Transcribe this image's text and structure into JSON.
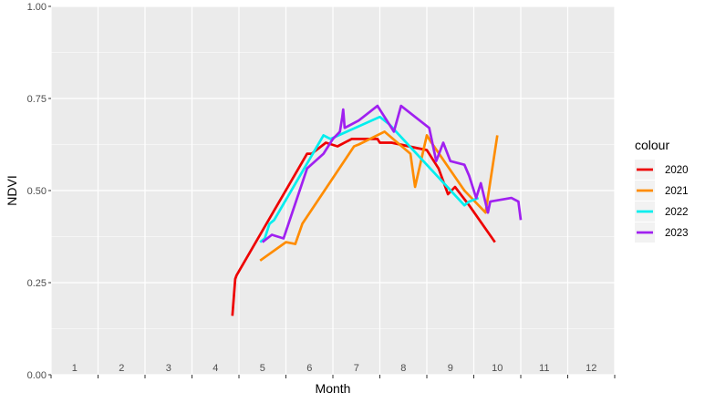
{
  "chart_data": {
    "type": "line",
    "title": "",
    "xlabel": "Month",
    "ylabel": "NDVI",
    "xlim": [
      0.5,
      12.5
    ],
    "ylim": [
      0,
      1
    ],
    "x_ticks": [
      1,
      2,
      3,
      4,
      5,
      6,
      7,
      8,
      9,
      10,
      11,
      12
    ],
    "x_tick_labels": [
      "1",
      "2",
      "3",
      "4",
      "5",
      "6",
      "7",
      "8",
      "9",
      "10",
      "11",
      "12"
    ],
    "y_ticks": [
      0,
      0.25,
      0.5,
      0.75,
      1
    ],
    "y_tick_labels": [
      "0.00",
      "0.25",
      "0.50",
      "0.75",
      "1.00"
    ],
    "grid": true,
    "legend": {
      "title": "colour",
      "position": "right"
    },
    "series": [
      {
        "name": "2020",
        "color": "#ee0000",
        "points": [
          [
            4.36,
            0.16
          ],
          [
            4.42,
            0.26
          ],
          [
            4.45,
            0.27
          ],
          [
            5.95,
            0.6
          ],
          [
            6.05,
            0.6
          ],
          [
            6.35,
            0.63
          ],
          [
            6.6,
            0.62
          ],
          [
            6.9,
            0.64
          ],
          [
            7.45,
            0.64
          ],
          [
            7.5,
            0.63
          ],
          [
            7.75,
            0.63
          ],
          [
            8.3,
            0.615
          ],
          [
            8.5,
            0.61
          ],
          [
            8.75,
            0.56
          ],
          [
            8.95,
            0.49
          ],
          [
            9.1,
            0.51
          ],
          [
            9.4,
            0.46
          ],
          [
            9.95,
            0.36
          ]
        ]
      },
      {
        "name": "2021",
        "color": "#ff8c00",
        "points": [
          [
            4.95,
            0.31
          ],
          [
            5.5,
            0.36
          ],
          [
            5.7,
            0.355
          ],
          [
            5.85,
            0.41
          ],
          [
            6.95,
            0.62
          ],
          [
            7.05,
            0.625
          ],
          [
            7.6,
            0.66
          ],
          [
            8.15,
            0.6
          ],
          [
            8.25,
            0.51
          ],
          [
            8.5,
            0.65
          ],
          [
            8.6,
            0.63
          ],
          [
            9.3,
            0.5
          ],
          [
            9.75,
            0.44
          ],
          [
            10.0,
            0.65
          ]
        ]
      },
      {
        "name": "2022",
        "color": "#00eeee",
        "points": [
          [
            4.95,
            0.36
          ],
          [
            5.05,
            0.37
          ],
          [
            5.15,
            0.41
          ],
          [
            5.25,
            0.42
          ],
          [
            6.3,
            0.65
          ],
          [
            6.45,
            0.64
          ],
          [
            7.5,
            0.7
          ],
          [
            7.7,
            0.68
          ],
          [
            9.3,
            0.46
          ],
          [
            9.4,
            0.47
          ],
          [
            9.6,
            0.48
          ]
        ]
      },
      {
        "name": "2023",
        "color": "#a020f0",
        "points": [
          [
            5.0,
            0.36
          ],
          [
            5.2,
            0.38
          ],
          [
            5.45,
            0.37
          ],
          [
            5.95,
            0.56
          ],
          [
            6.3,
            0.6
          ],
          [
            6.5,
            0.64
          ],
          [
            6.65,
            0.66
          ],
          [
            6.7,
            0.7
          ],
          [
            6.72,
            0.72
          ],
          [
            6.75,
            0.67
          ],
          [
            7.05,
            0.69
          ],
          [
            7.45,
            0.73
          ],
          [
            7.8,
            0.66
          ],
          [
            7.95,
            0.73
          ],
          [
            8.55,
            0.67
          ],
          [
            8.7,
            0.58
          ],
          [
            8.85,
            0.63
          ],
          [
            9.0,
            0.58
          ],
          [
            9.3,
            0.57
          ],
          [
            9.4,
            0.54
          ],
          [
            9.55,
            0.48
          ],
          [
            9.65,
            0.52
          ],
          [
            9.8,
            0.44
          ],
          [
            9.85,
            0.47
          ],
          [
            10.3,
            0.48
          ],
          [
            10.45,
            0.47
          ],
          [
            10.5,
            0.42
          ]
        ]
      }
    ]
  }
}
